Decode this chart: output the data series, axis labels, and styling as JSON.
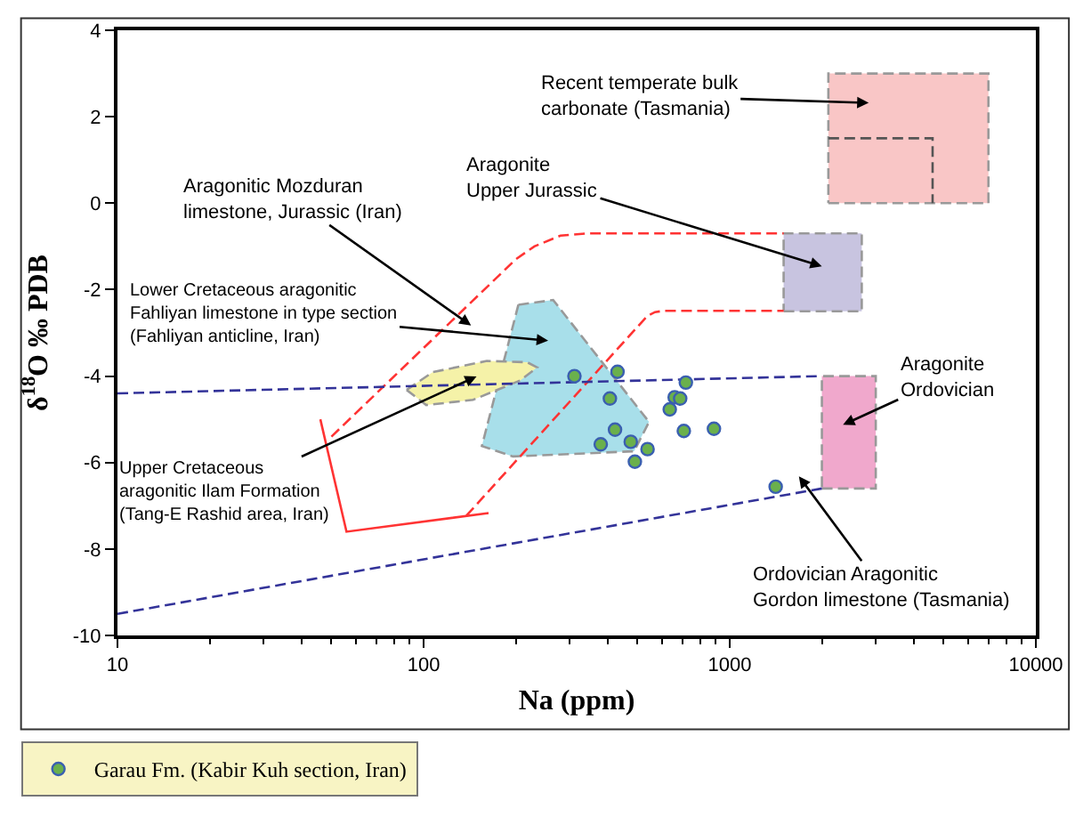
{
  "chart_data": {
    "type": "scatter",
    "xlabel": "Na (ppm)",
    "ylabel": "δ$^{18}$O ‰ PDB",
    "log": "x",
    "xlim": [
      10,
      10000
    ],
    "xticks": [
      10,
      100,
      1000,
      10000
    ],
    "ylim": [
      -10,
      4
    ],
    "yticks": [
      -10,
      -8,
      -6,
      -4,
      -2,
      0,
      2,
      4
    ],
    "grid": false,
    "legend": "bottom left",
    "series": [
      {
        "type": "area",
        "marker": "none",
        "line_style": "dashed",
        "color": "#f9c6c6",
        "x": [
          2100,
          7000,
          7000,
          2100,
          2100
        ],
        "values": [
          0,
          0,
          3,
          3,
          0
        ]
      },
      {
        "type": "line",
        "marker": "none",
        "line_style": "dashed",
        "color": "#555555",
        "x": [
          2100,
          4600,
          4600
        ],
        "values": [
          1.5,
          1.5,
          0
        ]
      },
      {
        "type": "area",
        "marker": "none",
        "line_style": "dashed",
        "color": "#c8c4e0",
        "x": [
          1500,
          2700,
          2700,
          1500,
          1500
        ],
        "values": [
          -2.5,
          -2.5,
          -0.7,
          -0.7,
          -2.5
        ]
      },
      {
        "type": "area",
        "marker": "none",
        "line_style": "dashed",
        "color": "#f0a8cc",
        "x": [
          2000,
          3000,
          3000,
          2000,
          2000
        ],
        "values": [
          -6.6,
          -6.6,
          -4,
          -4,
          -6.6
        ]
      },
      {
        "type": "area",
        "marker": "none",
        "line_style": "dashed",
        "color": "#a8dfea",
        "x": [
          204,
          265,
          545,
          487,
          196,
          155,
          204
        ],
        "values": [
          -2.35,
          -2.24,
          -5.06,
          -5.74,
          -5.86,
          -5.62,
          -2.35
        ]
      },
      {
        "type": "area",
        "marker": "none",
        "line_style": "dashed",
        "color": "#f5f2a8",
        "x": [
          88,
          107,
          161,
          218,
          235,
          207,
          145,
          102,
          88
        ],
        "values": [
          -4.32,
          -3.91,
          -3.65,
          -3.68,
          -3.8,
          -4.1,
          -4.55,
          -4.67,
          -4.32
        ]
      },
      {
        "type": "line",
        "marker": "none",
        "line_style": "dashed",
        "color": "#ff3333",
        "x": [
          50,
          200,
          230,
          280,
          340,
          1500
        ],
        "values": [
          -5.4,
          -1.3,
          -1.0,
          -0.75,
          -0.7,
          -0.7
        ]
      },
      {
        "type": "line",
        "marker": "none",
        "line_style": "dashed",
        "color": "#ff3333",
        "x": [
          138,
          538,
          570,
          611,
          1500
        ],
        "values": [
          -7.23,
          -2.61,
          -2.52,
          -2.49,
          -2.49
        ]
      },
      {
        "type": "line",
        "marker": "none",
        "line_style": "solid",
        "color": "#ff3333",
        "x": [
          46,
          56,
          163
        ],
        "values": [
          -5.0,
          -7.6,
          -7.17
        ]
      },
      {
        "type": "line",
        "marker": "none",
        "line_style": "dashed",
        "color": "#333399",
        "x": [
          10,
          2000
        ],
        "values": [
          -4.4,
          -4.0
        ]
      },
      {
        "type": "line",
        "marker": "none",
        "line_style": "dashed",
        "color": "#333399",
        "x": [
          10,
          2000
        ],
        "values": [
          -9.5,
          -6.6
        ]
      },
      {
        "type": "scatter",
        "marker": "circle",
        "name": "Garau Fm. (Kabir Kuh section, Iran)",
        "color": "#6ab04c",
        "x": [
          311,
          430,
          719,
          406,
          661,
          689,
          637,
          422,
          708,
          888,
          379,
          475,
          539,
          490,
          1413
        ],
        "values": [
          -4.0,
          -3.9,
          -4.15,
          -4.52,
          -4.49,
          -4.52,
          -4.77,
          -5.24,
          -5.27,
          -5.22,
          -5.58,
          -5.52,
          -5.69,
          -5.98,
          -6.56
        ]
      }
    ],
    "annotations": [
      "Recent temperate bulk\ncarbonate (Tasmania)",
      "Aragonite\nUpper Jurassic",
      "Aragonitic Mozduran\nlimestone, Jurassic (Iran)",
      "Lower Cretaceous aragonitic\nFahliyan limestone in type section\n(Fahliyan anticline, Iran)",
      "Upper Cretaceous\naragonitic Ilam Formation\n(Tang-E Rashid area, Iran)",
      "Aragonite\nOrdovician",
      "Ordovician Aragonitic\nGordon limestone (Tasmania)"
    ]
  }
}
